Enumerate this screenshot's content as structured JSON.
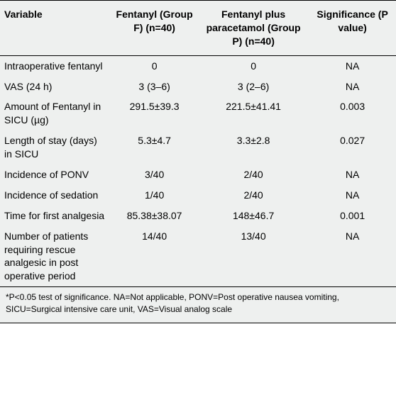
{
  "table": {
    "type": "table",
    "background_color": "#eef0ef",
    "border_color": "#000000",
    "header_fontsize": 14,
    "body_fontsize": 14,
    "footnote_fontsize": 12,
    "column_widths_pct": [
      28,
      22,
      28,
      22
    ],
    "columns": [
      "Variable",
      "Fentanyl (Group F) (n=40)",
      "Fentanyl plus paracetamol (Group P) (n=40)",
      "Significance (P value)"
    ],
    "rows": [
      {
        "variable": "Intraoperative fentanyl",
        "group_f": "0",
        "group_p": "0",
        "sig": "NA"
      },
      {
        "variable": "VAS (24 h)",
        "group_f": "3 (3–6)",
        "group_p": "3 (2–6)",
        "sig": "NA"
      },
      {
        "variable": "Amount of Fentanyl in SICU (µg)",
        "group_f": "291.5±39.3",
        "group_p": "221.5±41.41",
        "sig": "0.003"
      },
      {
        "variable": "Length of stay (days) in SICU",
        "group_f": "5.3±4.7",
        "group_p": "3.3±2.8",
        "sig": "0.027"
      },
      {
        "variable": "Incidence of PONV",
        "group_f": "3/40",
        "group_p": "2/40",
        "sig": "NA"
      },
      {
        "variable": "Incidence of sedation",
        "group_f": "1/40",
        "group_p": "2/40",
        "sig": "NA"
      },
      {
        "variable": "Time for first analgesia",
        "group_f": "85.38±38.07",
        "group_p": "148±46.7",
        "sig": "0.001"
      },
      {
        "variable": "Number of patients requiring rescue analgesic in post operative period",
        "group_f": "14/40",
        "group_p": "13/40",
        "sig": "NA"
      }
    ],
    "footnote": "*P<0.05 test of significance. NA=Not applicable, PONV=Post operative nausea vomiting, SICU=Surgical intensive care unit, VAS=Visual analog scale"
  }
}
